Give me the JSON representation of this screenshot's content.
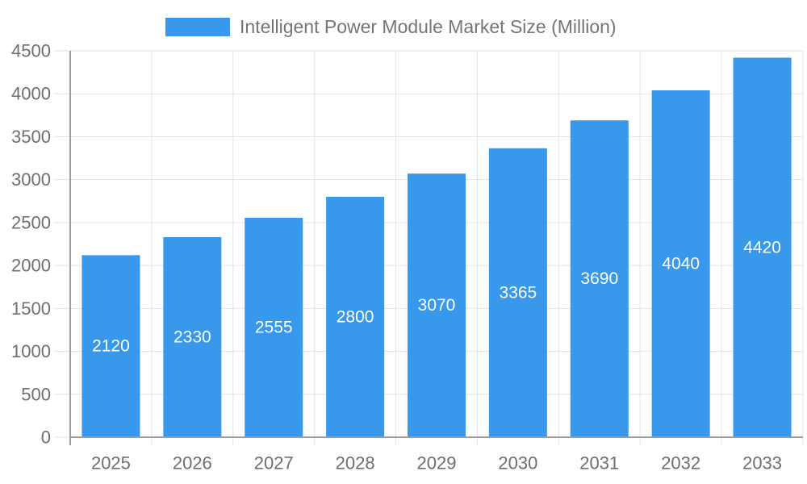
{
  "chart_data": {
    "type": "bar",
    "title": "Intelligent Power Module Market Size (Million)",
    "categories": [
      "2025",
      "2026",
      "2027",
      "2028",
      "2029",
      "2030",
      "2031",
      "2032",
      "2033"
    ],
    "series": [
      {
        "name": "Intelligent Power Module Market Size (Million)",
        "values": [
          2120,
          2330,
          2555,
          2800,
          3070,
          3365,
          3690,
          4040,
          4420
        ]
      }
    ],
    "xlabel": "",
    "ylabel": "",
    "ylim": [
      0,
      4500
    ],
    "ytick_step": 500,
    "ytick_labels": [
      "0",
      "500",
      "1000",
      "1500",
      "2000",
      "2500",
      "3000",
      "3500",
      "4000",
      "4500"
    ],
    "grid": "on",
    "legend_position": "top",
    "value_labels": "inside-center",
    "colors": {
      "bar": "#3899EC",
      "value_label": "#FFFFFF",
      "axis_line": "#9E9E9E",
      "grid_line": "#E3E3E3",
      "tick_label": "#6E6E6E",
      "legend_text": "#757575",
      "background": "#FFFFFF"
    }
  }
}
